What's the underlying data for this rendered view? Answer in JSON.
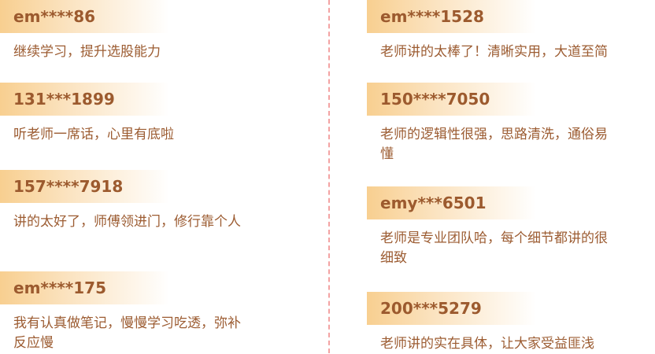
{
  "left": [
    {
      "user": "em****86",
      "comment": "继续学习，提升选股能力"
    },
    {
      "user": "131***1899",
      "comment": "听老师一席话，心里有底啦"
    },
    {
      "user": "157****7918",
      "comment": "讲的太好了，师傅领进门，修行靠个人"
    },
    {
      "user": "em****175",
      "comment": "我有认真做笔记，慢慢学习吃透，弥补反应慢"
    }
  ],
  "right": [
    {
      "user": "em****1528",
      "comment": "老师讲的太棒了！清晰实用，大道至简"
    },
    {
      "user": "150****7050",
      "comment": "老师的逻辑性很强，思路清洗，通俗易懂"
    },
    {
      "user": "emy***6501",
      "comment": "老师是专业团队哈，每个细节都讲的很细致"
    },
    {
      "user": "200***5279",
      "comment": "老师讲的实在具体，让大家受益匪浅"
    }
  ],
  "colors": {
    "header_gradient_start": "#f8cf90",
    "text": "#9c5c32",
    "divider": "#f3a2a2"
  }
}
